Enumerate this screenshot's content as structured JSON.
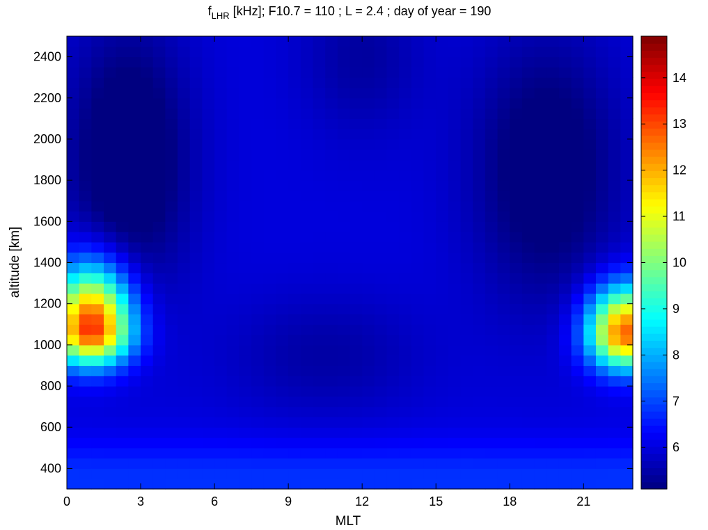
{
  "chart_data": {
    "type": "heatmap",
    "title": {
      "main": "f",
      "sub": "LHR",
      "rest": " [kHz];  F10.7 = 110 ; L = 2.4 ; day of year = 190"
    },
    "xlabel": "MLT",
    "ylabel": "altitude [km]",
    "xlim": [
      0,
      23
    ],
    "ylim": [
      300,
      2500
    ],
    "xticks": [
      0,
      3,
      6,
      9,
      12,
      15,
      18,
      21
    ],
    "yticks": [
      400,
      600,
      800,
      1000,
      1200,
      1400,
      1600,
      1800,
      2000,
      2200,
      2400
    ],
    "colorbar": {
      "range": [
        5.1,
        14.9
      ],
      "ticks": [
        6,
        7,
        8,
        9,
        10,
        11,
        12,
        13,
        14
      ],
      "colormap": "jet"
    },
    "grid": {
      "x_step_hours": 0.5,
      "y_step_km": 50,
      "features": [
        {
          "mlt": 1.0,
          "alt": 1080,
          "peak": 13.5,
          "sx": 1.6,
          "sy_low": 170,
          "sy_high": 290
        },
        {
          "mlt": 22.7,
          "alt": 1060,
          "peak": 12.8,
          "sx": 1.5,
          "sy_low": 170,
          "sy_high": 220
        },
        {
          "mlt": 2.5,
          "alt": 1900,
          "peak": 3.2,
          "sx": 2.5,
          "sy": 650
        },
        {
          "mlt": 19.5,
          "alt": 1850,
          "peak": 3.5,
          "sx": 3.0,
          "sy": 650
        }
      ]
    }
  }
}
